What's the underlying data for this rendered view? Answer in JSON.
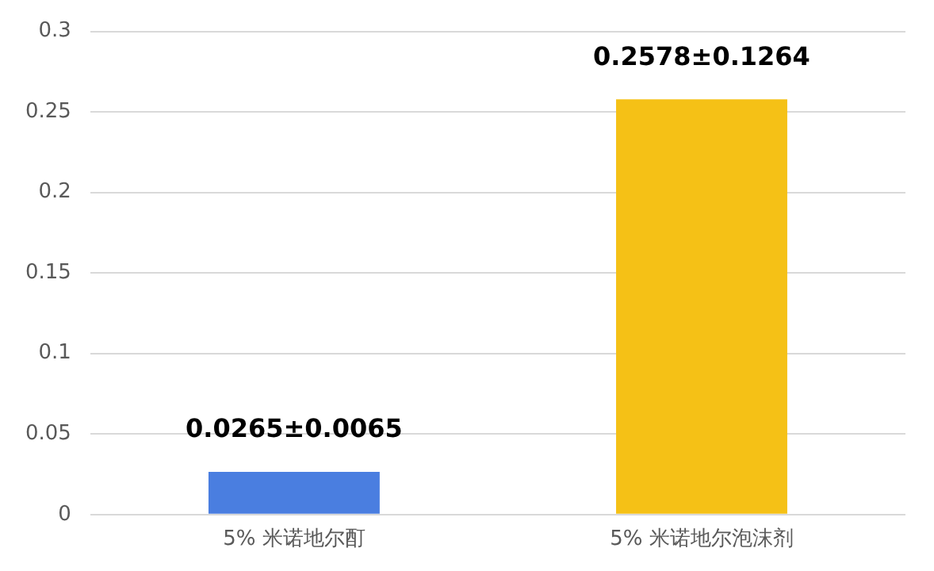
{
  "chart_data": {
    "type": "bar",
    "categories": [
      "5% 米诺地尔酊",
      "5% 米诺地尔泡沫剂"
    ],
    "values": [
      0.0265,
      0.2578
    ],
    "colors": [
      "#4a7ee0",
      "#f5c116"
    ],
    "value_labels": [
      "0.0265±0.0065",
      "0.2578±0.1264"
    ],
    "ylim": [
      0,
      0.3
    ],
    "yticks": [
      0,
      0.05,
      0.1,
      0.15,
      0.2,
      0.25,
      0.3
    ],
    "grid": "y",
    "legend": false
  }
}
